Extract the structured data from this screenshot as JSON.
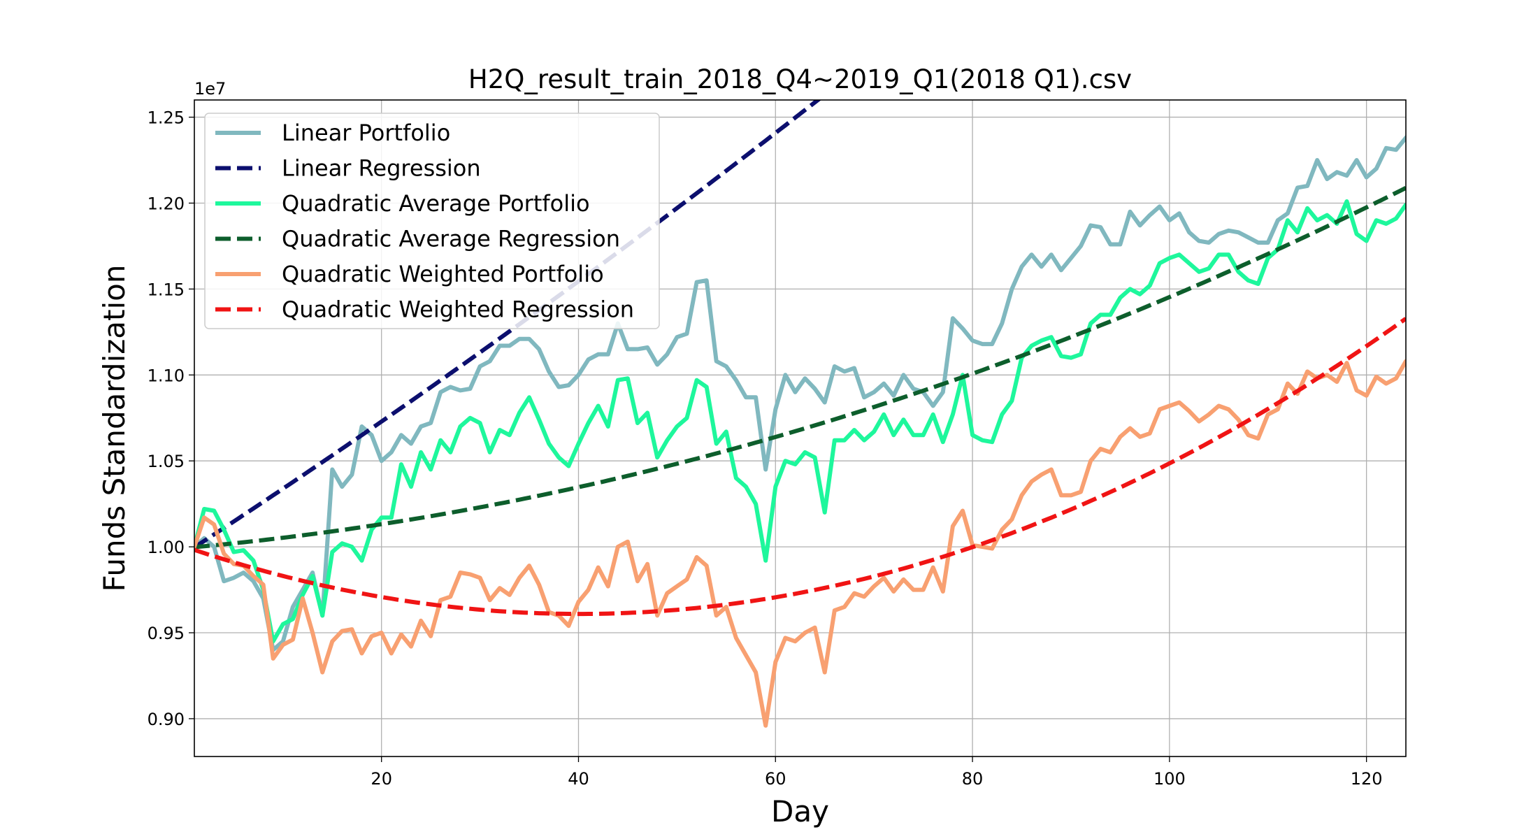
{
  "chart_data": {
    "type": "line",
    "title": "H2Q_result_train_2018_Q4~2019_Q1(2018 Q1).csv",
    "xlabel": "Day",
    "ylabel": "Funds Standardization",
    "y_offset_label": "1e7",
    "xlim": [
      1,
      124
    ],
    "ylim": [
      8.78,
      12.6
    ],
    "x_ticks": [
      20,
      40,
      60,
      80,
      100,
      120
    ],
    "y_ticks": [
      9.0,
      9.5,
      10.0,
      10.5,
      11.0,
      11.5,
      12.0,
      12.5
    ],
    "y_tick_labels": [
      "0.90",
      "0.95",
      "1.00",
      "1.05",
      "1.10",
      "1.15",
      "1.20",
      "1.25"
    ],
    "grid": true,
    "legend_position": "top-left",
    "series": [
      {
        "name": "Linear Portfolio",
        "style": "solid",
        "color": "#80b8bf",
        "x_start": 1,
        "values": [
          10.0,
          10.05,
          10.0,
          9.8,
          9.82,
          9.85,
          9.8,
          9.7,
          9.4,
          9.45,
          9.65,
          9.75,
          9.85,
          9.6,
          10.45,
          10.35,
          10.42,
          10.7,
          10.65,
          10.5,
          10.55,
          10.65,
          10.6,
          10.7,
          10.72,
          10.9,
          10.93,
          10.91,
          10.92,
          11.05,
          11.08,
          11.17,
          11.17,
          11.21,
          11.21,
          11.15,
          11.02,
          10.93,
          10.94,
          11.0,
          11.09,
          11.12,
          11.12,
          11.3,
          11.15,
          11.15,
          11.16,
          11.06,
          11.12,
          11.22,
          11.24,
          11.54,
          11.55,
          11.08,
          11.05,
          10.97,
          10.87,
          10.87,
          10.45,
          10.8,
          11.0,
          10.9,
          10.98,
          10.92,
          10.84,
          11.05,
          11.02,
          11.04,
          10.87,
          10.9,
          10.95,
          10.88,
          11.0,
          10.92,
          10.9,
          10.82,
          10.9,
          11.33,
          11.27,
          11.2,
          11.18,
          11.18,
          11.3,
          11.5,
          11.63,
          11.7,
          11.63,
          11.7,
          11.61,
          11.68,
          11.75,
          11.87,
          11.86,
          11.76,
          11.76,
          11.95,
          11.87,
          11.93,
          11.98,
          11.9,
          11.94,
          11.83,
          11.78,
          11.77,
          11.82,
          11.84,
          11.83,
          11.8,
          11.77,
          11.77,
          11.9,
          11.94,
          12.09,
          12.1,
          12.25,
          12.14,
          12.18,
          12.16,
          12.25,
          12.15,
          12.2,
          12.32,
          12.31,
          12.38,
          12.44
        ]
      },
      {
        "name": "Linear Regression",
        "style": "dashed",
        "color": "#0c0f6e",
        "x_start": 1,
        "coefficients": [
          9.9595,
          0.0373,
          5.85e-05
        ]
      },
      {
        "name": "Quadratic Average Portfolio",
        "style": "solid",
        "color": "#1ef79c",
        "x_start": 1,
        "values": [
          10.0,
          10.22,
          10.21,
          10.1,
          9.97,
          9.98,
          9.92,
          9.75,
          9.45,
          9.55,
          9.58,
          9.72,
          9.83,
          9.6,
          9.97,
          10.02,
          10.0,
          9.92,
          10.1,
          10.17,
          10.17,
          10.48,
          10.35,
          10.55,
          10.45,
          10.62,
          10.55,
          10.7,
          10.75,
          10.72,
          10.55,
          10.68,
          10.65,
          10.78,
          10.87,
          10.74,
          10.6,
          10.52,
          10.47,
          10.6,
          10.72,
          10.82,
          10.7,
          10.97,
          10.98,
          10.72,
          10.78,
          10.52,
          10.62,
          10.7,
          10.75,
          10.97,
          10.93,
          10.6,
          10.67,
          10.4,
          10.35,
          10.25,
          9.92,
          10.35,
          10.5,
          10.48,
          10.55,
          10.52,
          10.2,
          10.62,
          10.62,
          10.68,
          10.62,
          10.67,
          10.77,
          10.65,
          10.74,
          10.65,
          10.65,
          10.77,
          10.61,
          10.77,
          11.0,
          10.65,
          10.62,
          10.61,
          10.77,
          10.85,
          11.1,
          11.17,
          11.2,
          11.22,
          11.11,
          11.1,
          11.12,
          11.3,
          11.35,
          11.35,
          11.45,
          11.5,
          11.47,
          11.52,
          11.65,
          11.68,
          11.7,
          11.65,
          11.6,
          11.62,
          11.7,
          11.7,
          11.6,
          11.55,
          11.53,
          11.68,
          11.73,
          11.9,
          11.83,
          11.97,
          11.9,
          11.93,
          11.88,
          12.01,
          11.82,
          11.78,
          11.9,
          11.88,
          11.91,
          11.99
        ]
      },
      {
        "name": "Quadratic Average Regression",
        "style": "dashed",
        "color": "#0d5e2c",
        "x_start": 1,
        "coefficients": [
          9.993,
          0.00502,
          9.58e-05
        ]
      },
      {
        "name": "Quadratic Weighted Portfolio",
        "style": "solid",
        "color": "#f8a071",
        "x_start": 1,
        "values": [
          10.0,
          10.17,
          10.13,
          9.96,
          9.9,
          9.89,
          9.83,
          9.78,
          9.35,
          9.43,
          9.46,
          9.7,
          9.5,
          9.27,
          9.45,
          9.51,
          9.52,
          9.38,
          9.48,
          9.5,
          9.38,
          9.49,
          9.42,
          9.57,
          9.48,
          9.69,
          9.71,
          9.85,
          9.84,
          9.82,
          9.69,
          9.76,
          9.72,
          9.82,
          9.89,
          9.78,
          9.62,
          9.6,
          9.54,
          9.68,
          9.75,
          9.88,
          9.77,
          10.0,
          10.03,
          9.8,
          9.9,
          9.6,
          9.73,
          9.77,
          9.81,
          9.94,
          9.89,
          9.6,
          9.65,
          9.47,
          9.37,
          9.27,
          8.96,
          9.33,
          9.47,
          9.45,
          9.5,
          9.53,
          9.27,
          9.63,
          9.65,
          9.73,
          9.71,
          9.77,
          9.82,
          9.74,
          9.81,
          9.75,
          9.75,
          9.88,
          9.74,
          10.12,
          10.21,
          10.01,
          10.0,
          9.99,
          10.1,
          10.16,
          10.3,
          10.38,
          10.42,
          10.45,
          10.3,
          10.3,
          10.32,
          10.5,
          10.57,
          10.55,
          10.64,
          10.69,
          10.64,
          10.66,
          10.8,
          10.82,
          10.84,
          10.79,
          10.73,
          10.77,
          10.82,
          10.8,
          10.74,
          10.65,
          10.63,
          10.77,
          10.8,
          10.95,
          10.89,
          11.02,
          10.98,
          11.0,
          10.96,
          11.07,
          10.91,
          10.88,
          10.99,
          10.95,
          10.98,
          11.08
        ]
      },
      {
        "name": "Quadratic Weighted Regression",
        "style": "dashed",
        "color": "#f01414",
        "x_start": 1,
        "coefficients": [
          10.0016,
          -0.01956,
          0.000244
        ]
      }
    ]
  }
}
